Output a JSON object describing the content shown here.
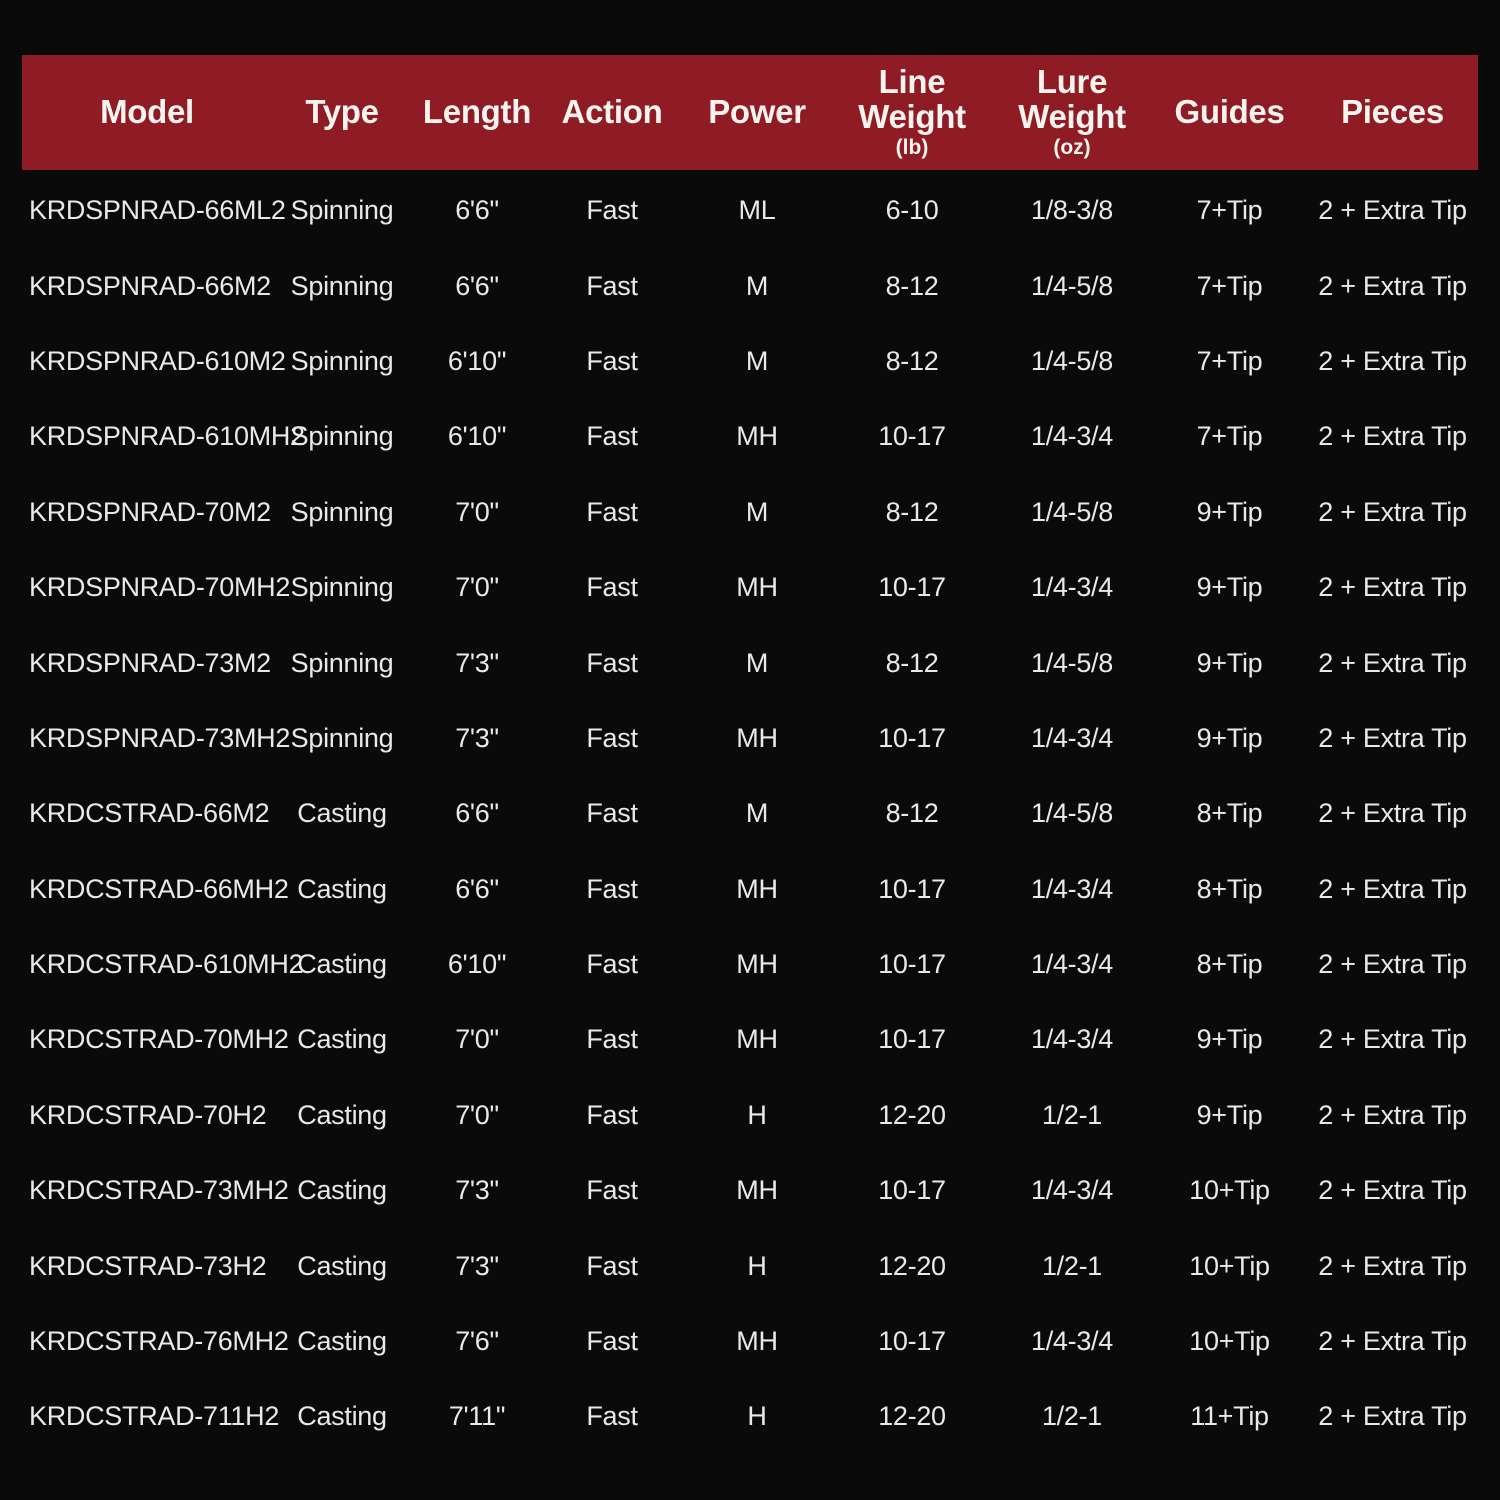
{
  "colors": {
    "background": "#0a0a0a",
    "header_bg": "#8f1c24",
    "header_text": "#f7f3ef",
    "body_text": "#e9e9e9"
  },
  "chart_data": {
    "type": "table",
    "columns": [
      {
        "id": "model",
        "label": "Model",
        "unit": ""
      },
      {
        "id": "type",
        "label": "Type",
        "unit": ""
      },
      {
        "id": "length",
        "label": "Length",
        "unit": ""
      },
      {
        "id": "action",
        "label": "Action",
        "unit": ""
      },
      {
        "id": "power",
        "label": "Power",
        "unit": ""
      },
      {
        "id": "line_weight",
        "label": "Line Weight",
        "unit": "(lb)"
      },
      {
        "id": "lure_weight",
        "label": "Lure Weight",
        "unit": "(oz)"
      },
      {
        "id": "guides",
        "label": "Guides",
        "unit": ""
      },
      {
        "id": "pieces",
        "label": "Pieces",
        "unit": ""
      }
    ],
    "rows": [
      [
        "KRDSPNRAD-66ML2",
        "Spinning",
        "6'6\"",
        "Fast",
        "ML",
        "6-10",
        "1/8-3/8",
        "7+Tip",
        "2 + Extra Tip"
      ],
      [
        "KRDSPNRAD-66M2",
        "Spinning",
        "6'6\"",
        "Fast",
        "M",
        "8-12",
        "1/4-5/8",
        "7+Tip",
        "2 + Extra Tip"
      ],
      [
        "KRDSPNRAD-610M2",
        "Spinning",
        "6'10\"",
        "Fast",
        "M",
        "8-12",
        "1/4-5/8",
        "7+Tip",
        "2 + Extra Tip"
      ],
      [
        "KRDSPNRAD-610MH2",
        "Spinning",
        "6'10\"",
        "Fast",
        "MH",
        "10-17",
        "1/4-3/4",
        "7+Tip",
        "2 + Extra Tip"
      ],
      [
        "KRDSPNRAD-70M2",
        "Spinning",
        "7'0\"",
        "Fast",
        "M",
        "8-12",
        "1/4-5/8",
        "9+Tip",
        "2 + Extra Tip"
      ],
      [
        "KRDSPNRAD-70MH2",
        "Spinning",
        "7'0\"",
        "Fast",
        "MH",
        "10-17",
        "1/4-3/4",
        "9+Tip",
        "2 + Extra Tip"
      ],
      [
        "KRDSPNRAD-73M2",
        "Spinning",
        "7'3\"",
        "Fast",
        "M",
        "8-12",
        "1/4-5/8",
        "9+Tip",
        "2 + Extra Tip"
      ],
      [
        "KRDSPNRAD-73MH2",
        "Spinning",
        "7'3\"",
        "Fast",
        "MH",
        "10-17",
        "1/4-3/4",
        "9+Tip",
        "2 + Extra Tip"
      ],
      [
        "KRDCSTRAD-66M2",
        "Casting",
        "6'6\"",
        "Fast",
        "M",
        "8-12",
        "1/4-5/8",
        "8+Tip",
        "2 + Extra Tip"
      ],
      [
        "KRDCSTRAD-66MH2",
        "Casting",
        "6'6\"",
        "Fast",
        "MH",
        "10-17",
        "1/4-3/4",
        "8+Tip",
        "2 + Extra Tip"
      ],
      [
        "KRDCSTRAD-610MH2",
        "Casting",
        "6'10\"",
        "Fast",
        "MH",
        "10-17",
        "1/4-3/4",
        "8+Tip",
        "2 + Extra Tip"
      ],
      [
        "KRDCSTRAD-70MH2",
        "Casting",
        "7'0\"",
        "Fast",
        "MH",
        "10-17",
        "1/4-3/4",
        "9+Tip",
        "2 + Extra Tip"
      ],
      [
        "KRDCSTRAD-70H2",
        "Casting",
        "7'0\"",
        "Fast",
        "H",
        "12-20",
        "1/2-1",
        "9+Tip",
        "2 + Extra Tip"
      ],
      [
        "KRDCSTRAD-73MH2",
        "Casting",
        "7'3\"",
        "Fast",
        "MH",
        "10-17",
        "1/4-3/4",
        "10+Tip",
        "2 + Extra Tip"
      ],
      [
        "KRDCSTRAD-73H2",
        "Casting",
        "7'3\"",
        "Fast",
        "H",
        "12-20",
        "1/2-1",
        "10+Tip",
        "2 + Extra Tip"
      ],
      [
        "KRDCSTRAD-76MH2",
        "Casting",
        "7'6\"",
        "Fast",
        "MH",
        "10-17",
        "1/4-3/4",
        "10+Tip",
        "2 + Extra Tip"
      ],
      [
        "KRDCSTRAD-711H2",
        "Casting",
        "7'11\"",
        "Fast",
        "H",
        "12-20",
        "1/2-1",
        "11+Tip",
        "2 + Extra Tip"
      ]
    ]
  }
}
